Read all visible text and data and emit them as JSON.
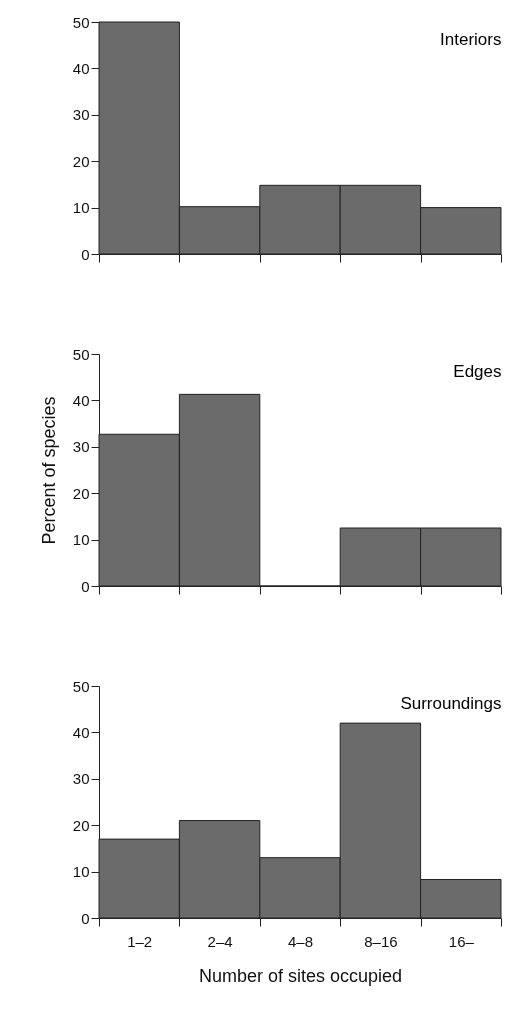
{
  "chart_data": [
    {
      "type": "bar",
      "title": "Interiors",
      "categories": [
        null,
        null,
        null,
        null,
        null
      ],
      "values": [
        50,
        10.2,
        14.8,
        14.8,
        10
      ],
      "color": "#6b6b6b",
      "ylim": [
        0,
        50
      ],
      "yticks": [
        0,
        10,
        20,
        30,
        40,
        50
      ],
      "grid": false,
      "tick_labels": "y"
    },
    {
      "type": "bar",
      "title": "Edges",
      "ylabel": "Percent of species",
      "categories": [
        null,
        null,
        null,
        null,
        null
      ],
      "values": [
        32.7,
        41.3,
        0,
        12.5,
        12.5
      ],
      "color": "#6b6b6b",
      "ylim": [
        0,
        50
      ],
      "yticks": [
        0,
        10,
        20,
        30,
        40,
        50
      ],
      "grid": false,
      "tick_labels": "y"
    },
    {
      "type": "bar",
      "title": "Surroundings",
      "xlabel": "Number of sites occupied",
      "categories": [
        "1–2",
        "2–4",
        "4–8",
        "8–16",
        "16–"
      ],
      "values": [
        17,
        21,
        13,
        42,
        8.3
      ],
      "color": "#6b6b6b",
      "ylim": [
        0,
        50
      ],
      "yticks": [
        0,
        10,
        20,
        30,
        40,
        50
      ],
      "grid": false
    }
  ]
}
